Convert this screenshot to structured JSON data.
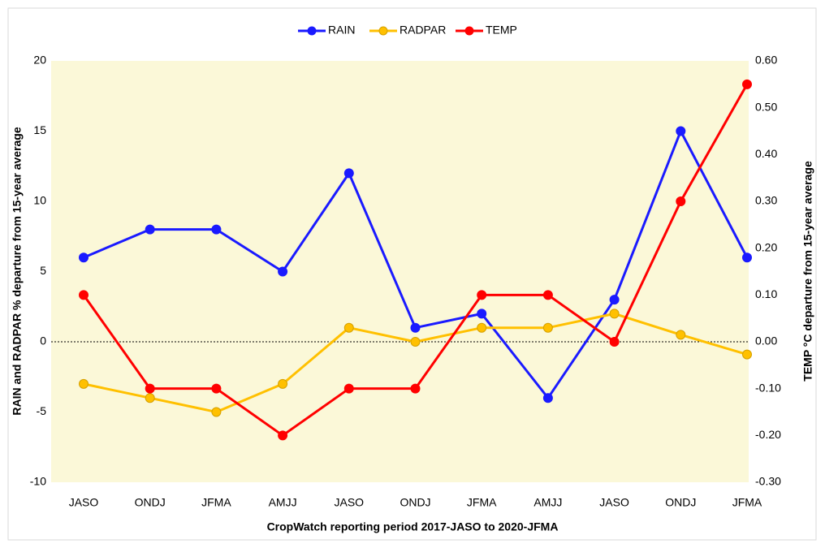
{
  "chart_data": {
    "type": "line",
    "categories": [
      "JASO",
      "ONDJ",
      "JFMA",
      "AMJJ",
      "JASO",
      "ONDJ",
      "JFMA",
      "AMJJ",
      "JASO",
      "ONDJ",
      "JFMA"
    ],
    "series": [
      {
        "name": "RAIN",
        "color": "#1a1aff",
        "values": [
          6,
          8,
          8,
          5,
          12,
          1,
          2,
          -4,
          3,
          15,
          6
        ]
      },
      {
        "name": "RADPAR",
        "color": "#ffc000",
        "values": [
          -3,
          -4,
          -5,
          -3,
          1,
          0,
          1,
          1,
          2,
          0.5,
          -0.9
        ]
      },
      {
        "name": "TEMP",
        "color": "#ff0000",
        "axis": "y2",
        "values": [
          0.1,
          -0.1,
          -0.1,
          -0.2,
          -0.1,
          -0.1,
          0.1,
          0.1,
          0,
          0.3,
          0.55
        ]
      }
    ],
    "xlabel": "CropWatch reporting period 2017-JASO to 2020-JFMA",
    "ylabel": "RAIN and RADPAR % departure from 15-year average",
    "y2label": "TEMP °C departure from 15-year average",
    "ylim": [
      -10,
      20
    ],
    "yticks": [
      -10,
      -5,
      0,
      5,
      10,
      15,
      20
    ],
    "y2lim": [
      -0.3,
      0.6
    ],
    "y2ticks": [
      {
        "value": -0.3,
        "label": "-0.30"
      },
      {
        "value": -0.2,
        "label": "-0.20"
      },
      {
        "value": -0.1,
        "label": "-0.10"
      },
      {
        "value": 0,
        "label": "0.00"
      },
      {
        "value": 0.1,
        "label": "0.10"
      },
      {
        "value": 0.2,
        "label": "0.20"
      },
      {
        "value": 0.3,
        "label": "0.30"
      },
      {
        "value": 0.4,
        "label": "0.40"
      },
      {
        "value": 0.5,
        "label": "0.50"
      },
      {
        "value": 0.6,
        "label": "0.60"
      }
    ],
    "legend": "top"
  }
}
